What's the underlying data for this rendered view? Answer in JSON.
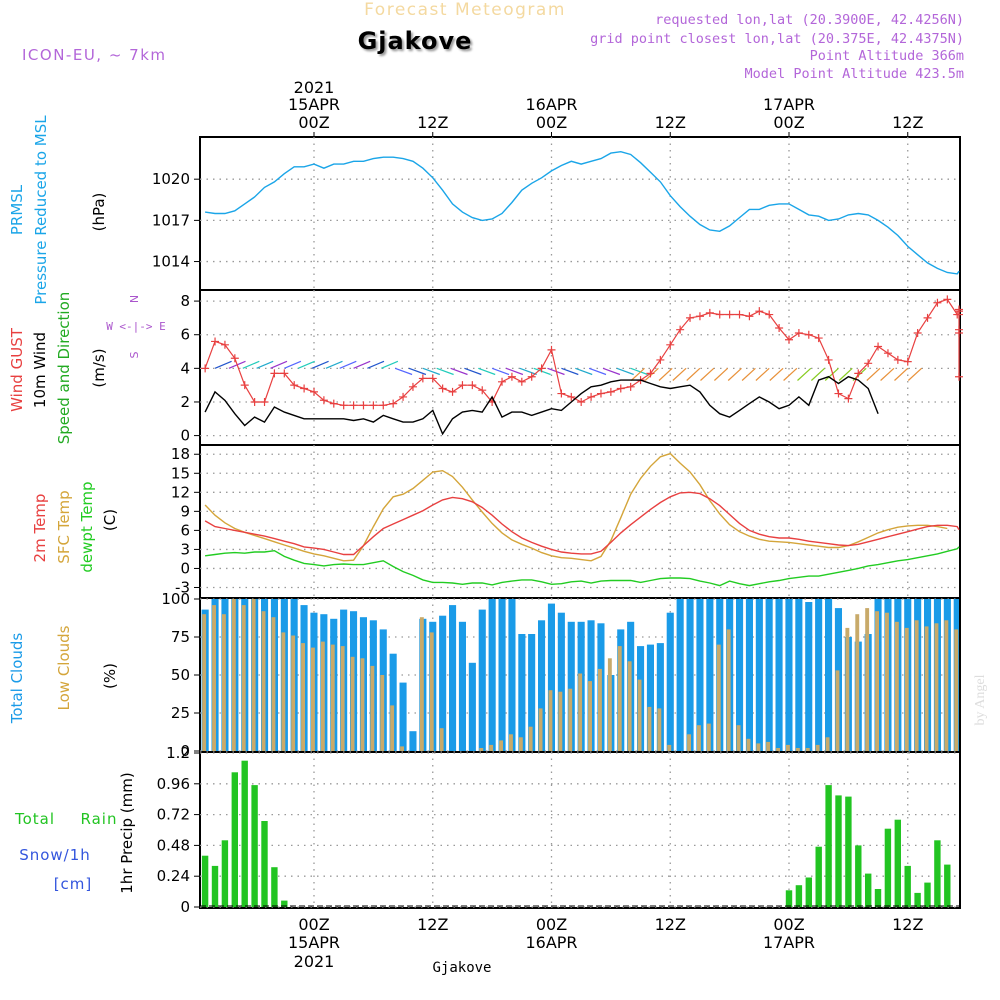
{
  "header": {
    "title": "Forecast Meteogram",
    "location": "Gjakove",
    "model": "ICON-EU, ~ 7km",
    "requested": "requested lon,lat (20.3900E, 42.4256N)",
    "gridpoint": "grid point closest lon,lat (20.375E, 42.4375N)",
    "point_alt": "Point Altitude 366m",
    "model_alt": "Model Point Altitude 423.5m",
    "watermark": "by Angel",
    "footer_location": "Gjakove"
  },
  "time_axis": {
    "top_year": "2021",
    "bottom_year": "2021",
    "ticks": [
      {
        "hour": 0,
        "label": "00Z",
        "date": "15APR"
      },
      {
        "hour": 12,
        "label": "12Z",
        "date": ""
      },
      {
        "hour": 24,
        "label": "00Z",
        "date": "16APR"
      },
      {
        "hour": 36,
        "label": "12Z",
        "date": ""
      },
      {
        "hour": 48,
        "label": "00Z",
        "date": "17APR"
      },
      {
        "hour": 60,
        "label": "12Z",
        "date": ""
      }
    ]
  },
  "panel_labels": {
    "pressure": [
      "PRMSL",
      "Pressure Reduced to MSL",
      "(hPa)"
    ],
    "wind": [
      "Wind GUST",
      "10m Wind",
      "Speed and Direction",
      "(m/s)"
    ],
    "wind_compass": [
      "N",
      "W <-|-> E",
      "S"
    ],
    "temp": [
      "2m Temp",
      "SFC Temp",
      "dewpt Temp",
      "(C)"
    ],
    "clouds": [
      "Total Clouds",
      "Low Clouds",
      "(%)"
    ],
    "precip": [
      "Total",
      "Rain",
      "Snow/1h",
      "[cm]",
      "1hr Precip (mm)"
    ]
  },
  "colors": {
    "pressure": "#1aa5e8",
    "gust": "#e84040",
    "wind": "#000000",
    "t2m": "#e84040",
    "tsfc": "#d4a53a",
    "dewpt": "#22cc22",
    "total_clouds": "#1a9be8",
    "low_clouds": "#c8aa6a",
    "rain": "#22c422",
    "snow": "#3355dd",
    "compass": "#aa55cc"
  },
  "chart_data": [
    {
      "type": "line",
      "title": "PRMSL Pressure Reduced to MSL",
      "ylabel": "(hPa)",
      "ylim": [
        1012,
        1023
      ],
      "yticks": [
        1014,
        1017,
        1020
      ],
      "x_start": -11,
      "x_step": 1,
      "series": [
        {
          "name": "PRMSL",
          "values": [
            1017.6,
            1017.5,
            1017.5,
            1017.7,
            1018.2,
            1018.7,
            1019.4,
            1019.8,
            1020.4,
            1020.9,
            1020.9,
            1021.1,
            1020.8,
            1021.1,
            1021.1,
            1021.3,
            1021.3,
            1021.5,
            1021.6,
            1021.6,
            1021.5,
            1021.3,
            1020.8,
            1020.1,
            1019.2,
            1018.2,
            1017.6,
            1017.2,
            1017.0,
            1017.1,
            1017.5,
            1018.3,
            1019.2,
            1019.7,
            1020.1,
            1020.6,
            1021.0,
            1021.3,
            1021.1,
            1021.3,
            1021.5,
            1021.9,
            1022.0,
            1021.8,
            1021.2,
            1020.5,
            1019.8,
            1018.8,
            1018.0,
            1017.3,
            1016.7,
            1016.3,
            1016.2,
            1016.6,
            1017.2,
            1017.8,
            1017.8,
            1018.1,
            1018.2,
            1018.2,
            1017.8,
            1017.4,
            1017.3,
            1017.0,
            1017.1,
            1017.4,
            1017.5,
            1017.4,
            1017.0,
            1016.5,
            1015.9,
            1015.1,
            1014.5,
            1013.9,
            1013.5,
            1013.2,
            1013.1,
            1013.3
          ]
        }
      ]
    },
    {
      "type": "line",
      "title": "Wind GUST / 10m Wind Speed and Direction",
      "ylabel": "(m/s)",
      "ylim": [
        -0.5,
        8.6
      ],
      "yticks": [
        0,
        2,
        4,
        6,
        8
      ],
      "x_start": -11,
      "x_step": 1,
      "series": [
        {
          "name": "Wind GUST",
          "values": [
            4.0,
            5.6,
            5.4,
            4.6,
            3.0,
            2.0,
            2.0,
            3.7,
            3.7,
            3.0,
            2.8,
            2.6,
            2.1,
            1.9,
            1.8,
            1.8,
            1.8,
            1.8,
            1.8,
            1.9,
            2.3,
            2.9,
            3.4,
            3.4,
            2.8,
            2.6,
            3.0,
            3.0,
            2.7,
            2.0,
            3.2,
            3.5,
            3.2,
            3.5,
            4.0,
            5.1,
            2.5,
            2.3,
            2.0,
            2.3,
            2.5,
            2.6,
            2.8,
            2.9,
            3.3,
            3.7,
            4.5,
            5.4,
            6.3,
            7.0,
            7.1,
            7.3,
            7.2,
            7.2,
            7.2,
            7.1,
            7.4,
            7.2,
            6.4,
            5.7,
            6.1,
            6.0,
            5.8,
            4.5,
            2.5,
            2.2,
            3.7,
            4.3,
            5.3,
            4.9,
            4.5,
            4.4,
            6.1,
            7.0,
            7.9,
            8.1,
            7.2,
            7.2,
            7.5,
            7.4,
            6.3,
            6.1,
            3.5
          ]
        },
        {
          "name": "10m Wind",
          "values": [
            1.4,
            2.6,
            2.1,
            1.3,
            0.6,
            1.1,
            0.8,
            1.7,
            1.4,
            1.2,
            1.0,
            1.0,
            1.0,
            1.0,
            1.0,
            0.9,
            1.0,
            0.8,
            1.2,
            1.0,
            0.8,
            0.8,
            1.0,
            1.5,
            0.1,
            1.0,
            1.4,
            1.5,
            1.4,
            2.3,
            1.1,
            1.4,
            1.4,
            1.2,
            1.4,
            1.6,
            1.5,
            2.0,
            2.5,
            2.9,
            3.0,
            3.2,
            3.3,
            3.3,
            3.3,
            3.1,
            2.9,
            2.8,
            2.9,
            3.0,
            2.6,
            1.8,
            1.3,
            1.1,
            1.5,
            1.9,
            2.3,
            2.0,
            1.6,
            1.8,
            2.3,
            1.8,
            3.3,
            3.5,
            3.1,
            3.5,
            3.3,
            2.8,
            1.3
          ]
        }
      ]
    },
    {
      "type": "line",
      "title": "2m Temp / SFC Temp / dewpt Temp",
      "ylabel": "(C)",
      "ylim": [
        -4.5,
        19.3
      ],
      "yticks": [
        -3,
        0,
        3,
        6,
        9,
        12,
        15,
        18
      ],
      "x_start": -11,
      "x_step": 1,
      "series": [
        {
          "name": "2m Temp",
          "values": [
            7.5,
            6.6,
            6.3,
            6.0,
            5.7,
            5.4,
            5.1,
            4.7,
            4.3,
            3.9,
            3.4,
            3.2,
            3.0,
            2.6,
            2.2,
            2.2,
            3.6,
            5.0,
            6.3,
            7.0,
            7.7,
            8.4,
            9.1,
            10.0,
            10.8,
            11.2,
            11.0,
            10.5,
            9.6,
            8.4,
            7.0,
            5.8,
            4.8,
            4.1,
            3.5,
            3.0,
            2.6,
            2.4,
            2.3,
            2.3,
            2.7,
            4.1,
            5.6,
            6.9,
            8.1,
            9.3,
            10.4,
            11.3,
            11.9,
            12.0,
            11.8,
            11.0,
            9.9,
            8.5,
            7.1,
            6.0,
            5.4,
            5.0,
            4.8,
            4.8,
            4.6,
            4.3,
            4.1,
            3.9,
            3.7,
            3.6,
            3.8,
            4.2,
            4.6,
            5.0,
            5.4,
            5.8,
            6.2,
            6.6,
            6.8,
            6.8,
            6.6,
            6.1
          ]
        },
        {
          "name": "SFC Temp",
          "values": [
            10.0,
            8.4,
            7.2,
            6.3,
            5.7,
            5.2,
            4.7,
            4.2,
            3.7,
            3.2,
            2.7,
            2.3,
            2.0,
            1.6,
            1.2,
            1.3,
            3.6,
            6.6,
            9.4,
            11.3,
            11.7,
            12.6,
            13.9,
            15.2,
            15.4,
            14.5,
            12.8,
            10.8,
            8.9,
            7.1,
            5.6,
            4.5,
            3.8,
            3.2,
            2.5,
            2.0,
            1.7,
            1.6,
            1.4,
            1.2,
            1.9,
            4.4,
            8.0,
            11.7,
            14.2,
            16.1,
            17.6,
            18.1,
            16.6,
            15.2,
            13.2,
            10.7,
            8.6,
            6.9,
            5.8,
            5.1,
            4.6,
            4.3,
            4.2,
            4.1,
            3.9,
            3.7,
            3.5,
            3.3,
            3.3,
            3.6,
            4.2,
            4.9,
            5.6,
            6.1,
            6.5,
            6.7,
            6.8,
            6.8,
            6.6,
            6.3
          ]
        },
        {
          "name": "dewpt Temp",
          "values": [
            2.0,
            2.2,
            2.4,
            2.5,
            2.4,
            2.6,
            2.6,
            2.8,
            1.9,
            1.3,
            0.8,
            0.6,
            0.4,
            0.6,
            0.7,
            0.6,
            0.6,
            0.9,
            1.2,
            0.3,
            -0.5,
            -1.1,
            -1.8,
            -2.2,
            -2.2,
            -2.3,
            -2.5,
            -2.3,
            -2.3,
            -2.6,
            -2.2,
            -2.0,
            -1.8,
            -1.8,
            -2.1,
            -2.5,
            -2.4,
            -2.1,
            -2.0,
            -2.3,
            -2.0,
            -1.9,
            -1.9,
            -1.9,
            -2.2,
            -1.9,
            -1.6,
            -1.5,
            -1.5,
            -1.6,
            -2.0,
            -2.3,
            -2.7,
            -2.0,
            -2.4,
            -2.7,
            -2.4,
            -2.1,
            -1.9,
            -1.6,
            -1.4,
            -1.2,
            -1.2,
            -0.9,
            -0.6,
            -0.3,
            0.0,
            0.4,
            0.6,
            0.9,
            1.2,
            1.4,
            1.7,
            2.0,
            2.3,
            2.7,
            3.1,
            3.4
          ]
        }
      ]
    },
    {
      "type": "bar",
      "title": "Total Clouds / Low Clouds",
      "ylabel": "(%)",
      "ylim": [
        0,
        100
      ],
      "yticks": [
        0,
        25,
        50,
        75,
        100
      ],
      "x_start": -11,
      "x_step": 1,
      "series": [
        {
          "name": "Total Clouds",
          "values": [
            93,
            100,
            100,
            100,
            100,
            100,
            100,
            100,
            100,
            100,
            96,
            91,
            90,
            87,
            93,
            92,
            88,
            86,
            80,
            64,
            45,
            13,
            87,
            85,
            89,
            96,
            85,
            58,
            93,
            100,
            100,
            100,
            77,
            77,
            86,
            97,
            91,
            85,
            85,
            86,
            84,
            50,
            80,
            85,
            69,
            70,
            71,
            91,
            100,
            100,
            100,
            100,
            100,
            100,
            100,
            100,
            100,
            100,
            100,
            100,
            100,
            98,
            100,
            100,
            94,
            75,
            72,
            77,
            100,
            100,
            100,
            100,
            100,
            100,
            100,
            100,
            100,
            100,
            100,
            100,
            100,
            100,
            100
          ]
        },
        {
          "name": "Low Clouds",
          "values": [
            90,
            96,
            90,
            100,
            96,
            100,
            92,
            88,
            78,
            76,
            71,
            68,
            72,
            70,
            69,
            62,
            61,
            56,
            50,
            30,
            3,
            0,
            88,
            78,
            15,
            0,
            0,
            0,
            2,
            4,
            7,
            11,
            9,
            16,
            28,
            40,
            39,
            41,
            51,
            46,
            54,
            61,
            69,
            59,
            47,
            29,
            28,
            4,
            0,
            11,
            17,
            18,
            70,
            80,
            17,
            8,
            5,
            6,
            2,
            4,
            2,
            2,
            4,
            9,
            53,
            81,
            90,
            94,
            92,
            91,
            85,
            81,
            86,
            82,
            84,
            86,
            80,
            77,
            74,
            85,
            81,
            79
          ]
        }
      ]
    },
    {
      "type": "bar",
      "title": "1hr Precip (mm)",
      "ylabel": "1hr Precip (mm)",
      "ylim": [
        0,
        1.2
      ],
      "yticks": [
        0,
        0.24,
        0.48,
        0.72,
        0.96,
        1.2
      ],
      "x_start": -11,
      "x_step": 1,
      "series": [
        {
          "name": "Total Rain",
          "values": [
            0.4,
            0.32,
            0.52,
            1.05,
            1.14,
            0.95,
            0.67,
            0.31,
            0.05,
            0,
            0,
            0,
            0,
            0,
            0,
            0,
            0,
            0,
            0,
            0,
            0,
            0,
            0,
            0,
            0,
            0,
            0,
            0,
            0,
            0,
            0,
            0,
            0,
            0,
            0,
            0,
            0,
            0,
            0,
            0,
            0,
            0,
            0,
            0,
            0,
            0,
            0,
            0,
            0,
            0,
            0,
            0,
            0,
            0,
            0,
            0,
            0,
            0,
            0,
            0.13,
            0.17,
            0.23,
            0.47,
            0.95,
            0.87,
            0.86,
            0.48,
            0.26,
            0.14,
            0.61,
            0.68,
            0.32,
            0.11,
            0.19,
            0.52,
            0.33
          ]
        },
        {
          "name": "Snow/1h",
          "values": []
        }
      ]
    }
  ]
}
